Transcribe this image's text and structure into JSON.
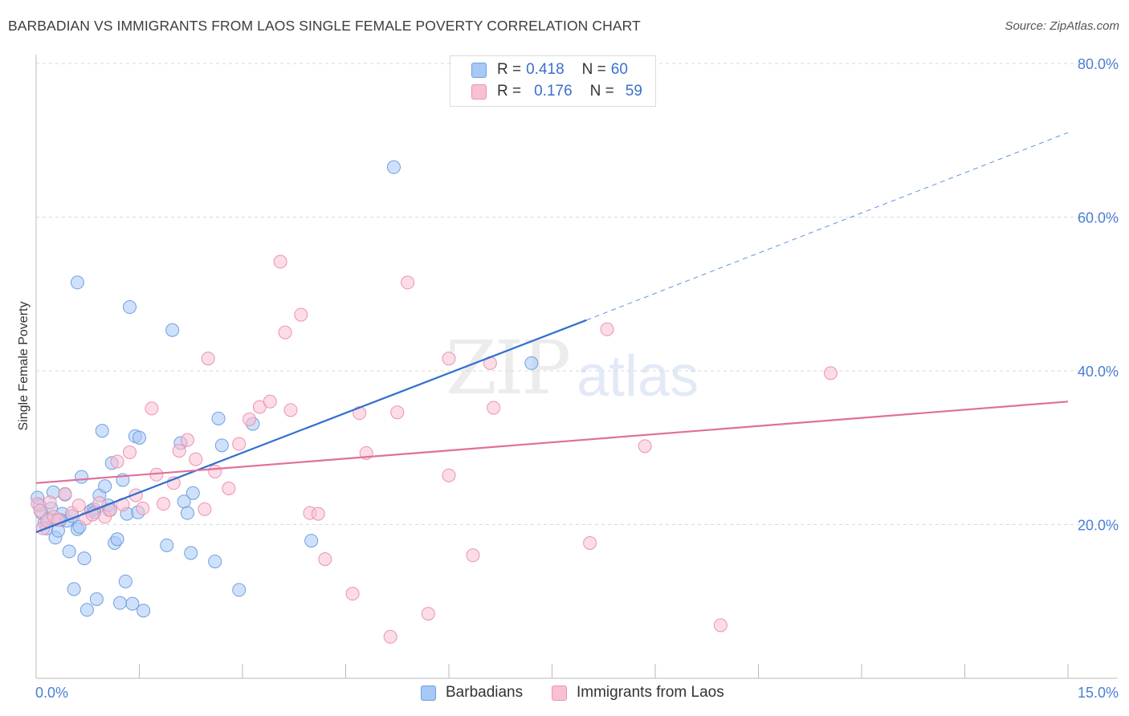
{
  "title": "BARBADIAN VS IMMIGRANTS FROM LAOS SINGLE FEMALE POVERTY CORRELATION CHART",
  "source": "Source: ZipAtlas.com",
  "watermark": {
    "zip": "ZIP",
    "atlas": "atlas"
  },
  "legend_top": [
    {
      "r_label": "R =",
      "r_value": "0.418",
      "n_label": "N =",
      "n_value": "60",
      "color": "#a8c8f5",
      "border": "#6f9fe0"
    },
    {
      "r_label": "R =",
      "r_value": "0.176",
      "n_label": "N =",
      "n_value": "59",
      "color": "#f9bfd2",
      "border": "#e994b0"
    }
  ],
  "legend_bottom": [
    {
      "label": "Barbadians",
      "color": "#a8c8f5",
      "border": "#6f9fe0"
    },
    {
      "label": "Immigrants from Laos",
      "color": "#f9bfd2",
      "border": "#e994b0"
    }
  ],
  "chart_data": {
    "type": "scatter",
    "title": "BARBADIAN VS IMMIGRANTS FROM LAOS SINGLE FEMALE POVERTY CORRELATION CHART",
    "xlabel": "",
    "ylabel": "Single Female Poverty",
    "xlim": [
      0,
      15
    ],
    "ylim": [
      0,
      82
    ],
    "x_tick_labels": [
      "0.0%",
      "15.0%"
    ],
    "y_ticks": [
      20,
      40,
      60,
      80
    ],
    "y_tick_labels": [
      "20.0%",
      "40.0%",
      "60.0%",
      "80.0%"
    ],
    "grid": "horizontal dashed",
    "series": [
      {
        "name": "Barbadians",
        "color": "#6f9fe0",
        "fill": "#a8c8f5",
        "trend": {
          "x0": 0.0,
          "y0": 19.0,
          "x1": 8.0,
          "y1": 46.6,
          "dash_to_x": 15.0,
          "dash_to_y": 71.0
        },
        "points": [
          [
            0.02,
            23.5
          ],
          [
            0.05,
            22.5
          ],
          [
            0.08,
            21.5
          ],
          [
            0.12,
            20.2
          ],
          [
            0.15,
            19.5
          ],
          [
            0.18,
            20.8
          ],
          [
            0.22,
            22.1
          ],
          [
            0.25,
            24.2
          ],
          [
            0.28,
            18.3
          ],
          [
            0.32,
            19.2
          ],
          [
            0.38,
            21.4
          ],
          [
            0.42,
            23.9
          ],
          [
            0.45,
            20.5
          ],
          [
            0.48,
            16.5
          ],
          [
            0.52,
            21.1
          ],
          [
            0.55,
            11.6
          ],
          [
            0.6,
            19.4
          ],
          [
            0.63,
            19.7
          ],
          [
            0.66,
            26.2
          ],
          [
            0.7,
            15.6
          ],
          [
            0.74,
            8.9
          ],
          [
            0.8,
            21.8
          ],
          [
            0.84,
            22.0
          ],
          [
            0.88,
            10.3
          ],
          [
            0.92,
            23.8
          ],
          [
            0.96,
            32.2
          ],
          [
            1.0,
            25.0
          ],
          [
            1.05,
            22.5
          ],
          [
            1.1,
            28.0
          ],
          [
            1.14,
            17.6
          ],
          [
            1.18,
            18.1
          ],
          [
            1.22,
            9.8
          ],
          [
            1.26,
            25.8
          ],
          [
            1.3,
            12.6
          ],
          [
            1.32,
            21.4
          ],
          [
            1.36,
            48.3
          ],
          [
            1.4,
            9.7
          ],
          [
            1.44,
            31.5
          ],
          [
            1.5,
            31.3
          ],
          [
            1.56,
            8.8
          ],
          [
            1.9,
            17.3
          ],
          [
            1.98,
            45.3
          ],
          [
            2.1,
            30.6
          ],
          [
            2.15,
            23.0
          ],
          [
            2.2,
            21.5
          ],
          [
            2.25,
            16.3
          ],
          [
            2.6,
            15.2
          ],
          [
            2.65,
            33.8
          ],
          [
            2.7,
            30.3
          ],
          [
            2.95,
            11.5
          ],
          [
            3.15,
            33.1
          ],
          [
            4.0,
            17.9
          ],
          [
            5.2,
            66.5
          ],
          [
            7.2,
            41.0
          ],
          [
            0.6,
            51.5
          ],
          [
            0.85,
            21.6
          ],
          [
            1.06,
            21.9
          ],
          [
            1.48,
            21.6
          ],
          [
            0.35,
            20.6
          ],
          [
            2.28,
            24.1
          ]
        ]
      },
      {
        "name": "Immigrants from Laos",
        "color": "#e994b0",
        "fill": "#f9bfd2",
        "trend": {
          "x0": 0.0,
          "y0": 25.4,
          "x1": 15.0,
          "y1": 36.0
        },
        "points": [
          [
            0.02,
            22.7
          ],
          [
            0.06,
            21.8
          ],
          [
            0.1,
            19.5
          ],
          [
            0.16,
            20.5
          ],
          [
            0.2,
            22.9
          ],
          [
            0.26,
            21.0
          ],
          [
            0.32,
            20.6
          ],
          [
            0.42,
            24.0
          ],
          [
            0.52,
            21.5
          ],
          [
            0.62,
            22.5
          ],
          [
            0.72,
            20.8
          ],
          [
            0.82,
            21.3
          ],
          [
            0.92,
            22.8
          ],
          [
            1.0,
            21.0
          ],
          [
            1.08,
            21.9
          ],
          [
            1.18,
            28.2
          ],
          [
            1.26,
            22.6
          ],
          [
            1.36,
            29.4
          ],
          [
            1.45,
            23.8
          ],
          [
            1.55,
            22.1
          ],
          [
            1.68,
            35.1
          ],
          [
            1.75,
            26.5
          ],
          [
            1.85,
            22.7
          ],
          [
            2.0,
            25.4
          ],
          [
            2.08,
            29.6
          ],
          [
            2.2,
            31.0
          ],
          [
            2.32,
            28.5
          ],
          [
            2.45,
            22.0
          ],
          [
            2.5,
            41.6
          ],
          [
            2.6,
            26.9
          ],
          [
            2.8,
            24.7
          ],
          [
            2.95,
            30.5
          ],
          [
            3.1,
            33.7
          ],
          [
            3.25,
            35.3
          ],
          [
            3.4,
            36.0
          ],
          [
            3.55,
            54.2
          ],
          [
            3.62,
            45.0
          ],
          [
            3.7,
            34.9
          ],
          [
            3.85,
            47.3
          ],
          [
            3.98,
            21.5
          ],
          [
            4.1,
            21.4
          ],
          [
            4.2,
            15.5
          ],
          [
            4.6,
            11.0
          ],
          [
            4.7,
            34.5
          ],
          [
            4.8,
            29.3
          ],
          [
            5.15,
            5.4
          ],
          [
            5.25,
            34.6
          ],
          [
            5.4,
            51.5
          ],
          [
            5.7,
            8.4
          ],
          [
            6.0,
            26.4
          ],
          [
            6.0,
            41.6
          ],
          [
            6.35,
            16.0
          ],
          [
            6.6,
            41.0
          ],
          [
            6.65,
            35.2
          ],
          [
            8.05,
            17.6
          ],
          [
            8.3,
            45.4
          ],
          [
            8.85,
            30.2
          ],
          [
            9.95,
            6.9
          ],
          [
            11.55,
            39.7
          ]
        ]
      }
    ]
  }
}
